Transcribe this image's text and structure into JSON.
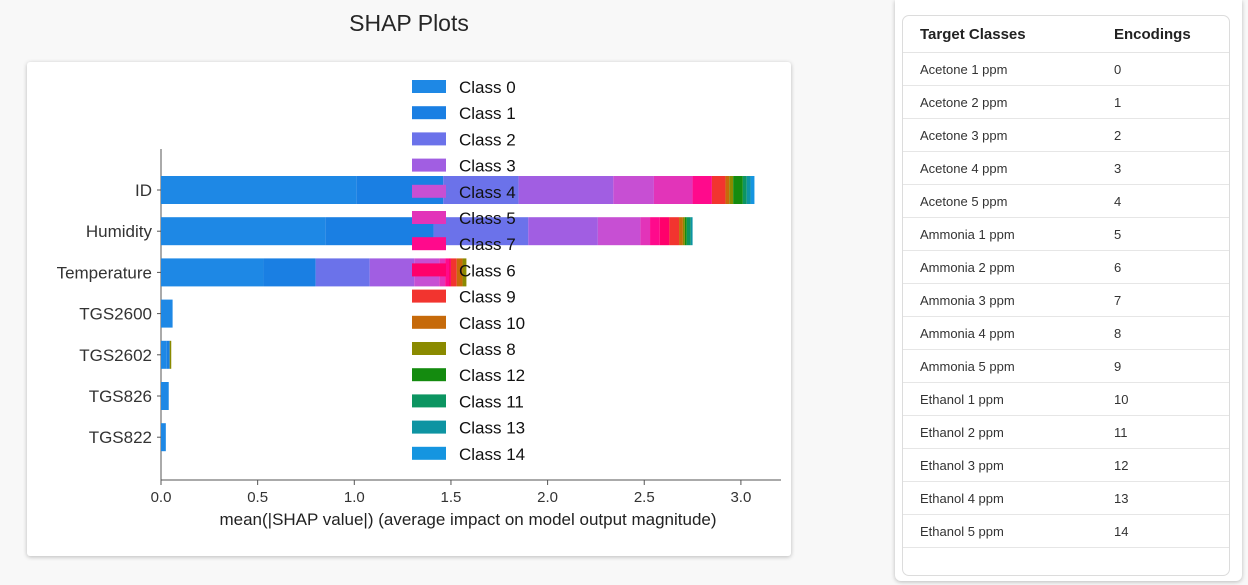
{
  "page": {
    "title": "SHAP Plots"
  },
  "chart_data": {
    "type": "bar",
    "orientation": "horizontal",
    "stacked": true,
    "xlabel": "mean(|SHAP value|) (average impact on model output magnitude)",
    "xlim": [
      0,
      3.2
    ],
    "xticks": [
      "0.0",
      "0.5",
      "1.0",
      "1.5",
      "2.0",
      "2.5",
      "3.0"
    ],
    "categories": [
      "ID",
      "Humidity",
      "Temperature",
      "TGS2600",
      "TGS2602",
      "TGS826",
      "TGS822"
    ],
    "legend_position": "top-center",
    "series": [
      {
        "name": "Class 0",
        "color": "#1e88e5",
        "values": [
          1.01,
          0.85,
          0.53,
          0.06,
          0.03,
          0.04,
          0.025
        ]
      },
      {
        "name": "Class 1",
        "color": "#1a7fe3",
        "values": [
          0.45,
          0.56,
          0.27,
          0.0,
          0.015,
          0.0,
          0.0
        ]
      },
      {
        "name": "Class 2",
        "color": "#6b72ea",
        "values": [
          0.39,
          0.49,
          0.28,
          0.0,
          0.0,
          0.0,
          0.0
        ]
      },
      {
        "name": "Class 3",
        "color": "#a15ee2",
        "values": [
          0.49,
          0.36,
          0.23,
          0.0,
          0.0,
          0.0,
          0.0
        ]
      },
      {
        "name": "Class 4",
        "color": "#c74fd3",
        "values": [
          0.21,
          0.22,
          0.13,
          0.0,
          0.0,
          0.0,
          0.0
        ]
      },
      {
        "name": "Class 5",
        "color": "#e234b9",
        "values": [
          0.2,
          0.05,
          0.03,
          0.0,
          0.0,
          0.0,
          0.0
        ]
      },
      {
        "name": "Class 7",
        "color": "#ff0a8c",
        "values": [
          0.1,
          0.05,
          0.02,
          0.0,
          0.0,
          0.0,
          0.0
        ]
      },
      {
        "name": "Class 6",
        "color": "#ff006b",
        "values": [
          0.0,
          0.05,
          0.01,
          0.0,
          0.0,
          0.0,
          0.0
        ]
      },
      {
        "name": "Class 9",
        "color": "#f2342f",
        "values": [
          0.07,
          0.05,
          0.03,
          0.0,
          0.0,
          0.0,
          0.0
        ]
      },
      {
        "name": "Class 10",
        "color": "#c66a0a",
        "values": [
          0.02,
          0.02,
          0.03,
          0.0,
          0.0,
          0.0,
          0.0
        ]
      },
      {
        "name": "Class 8",
        "color": "#8a8a00",
        "values": [
          0.02,
          0.01,
          0.02,
          0.0,
          0.008,
          0.0,
          0.0
        ]
      },
      {
        "name": "Class 12",
        "color": "#148b0f",
        "values": [
          0.05,
          0.01,
          0.0,
          0.0,
          0.0,
          0.0,
          0.0
        ]
      },
      {
        "name": "Class 11",
        "color": "#0c9561",
        "values": [
          0.02,
          0.02,
          0.0,
          0.0,
          0.0,
          0.0,
          0.0
        ]
      },
      {
        "name": "Class 13",
        "color": "#0e94a2",
        "values": [
          0.02,
          0.01,
          0.0,
          0.0,
          0.0,
          0.0,
          0.0
        ]
      },
      {
        "name": "Class 14",
        "color": "#1595e0",
        "values": [
          0.02,
          0.0,
          0.0,
          0.0,
          0.0,
          0.0,
          0.0
        ]
      }
    ]
  },
  "table": {
    "headers": {
      "target": "Target Classes",
      "encoding": "Encodings"
    },
    "rows": [
      {
        "target": "Acetone 1 ppm",
        "encoding": "0"
      },
      {
        "target": "Acetone 2 ppm",
        "encoding": "1"
      },
      {
        "target": "Acetone 3 ppm",
        "encoding": "2"
      },
      {
        "target": "Acetone 4 ppm",
        "encoding": "3"
      },
      {
        "target": "Acetone 5 ppm",
        "encoding": "4"
      },
      {
        "target": "Ammonia 1 ppm",
        "encoding": "5"
      },
      {
        "target": "Ammonia 2 ppm",
        "encoding": "6"
      },
      {
        "target": "Ammonia 3 ppm",
        "encoding": "7"
      },
      {
        "target": "Ammonia 4 ppm",
        "encoding": "8"
      },
      {
        "target": "Ammonia 5 ppm",
        "encoding": "9"
      },
      {
        "target": "Ethanol 1 ppm",
        "encoding": "10"
      },
      {
        "target": "Ethanol 2 ppm",
        "encoding": "11"
      },
      {
        "target": "Ethanol 3 ppm",
        "encoding": "12"
      },
      {
        "target": "Ethanol 4 ppm",
        "encoding": "13"
      },
      {
        "target": "Ethanol 5 ppm",
        "encoding": "14"
      }
    ]
  }
}
